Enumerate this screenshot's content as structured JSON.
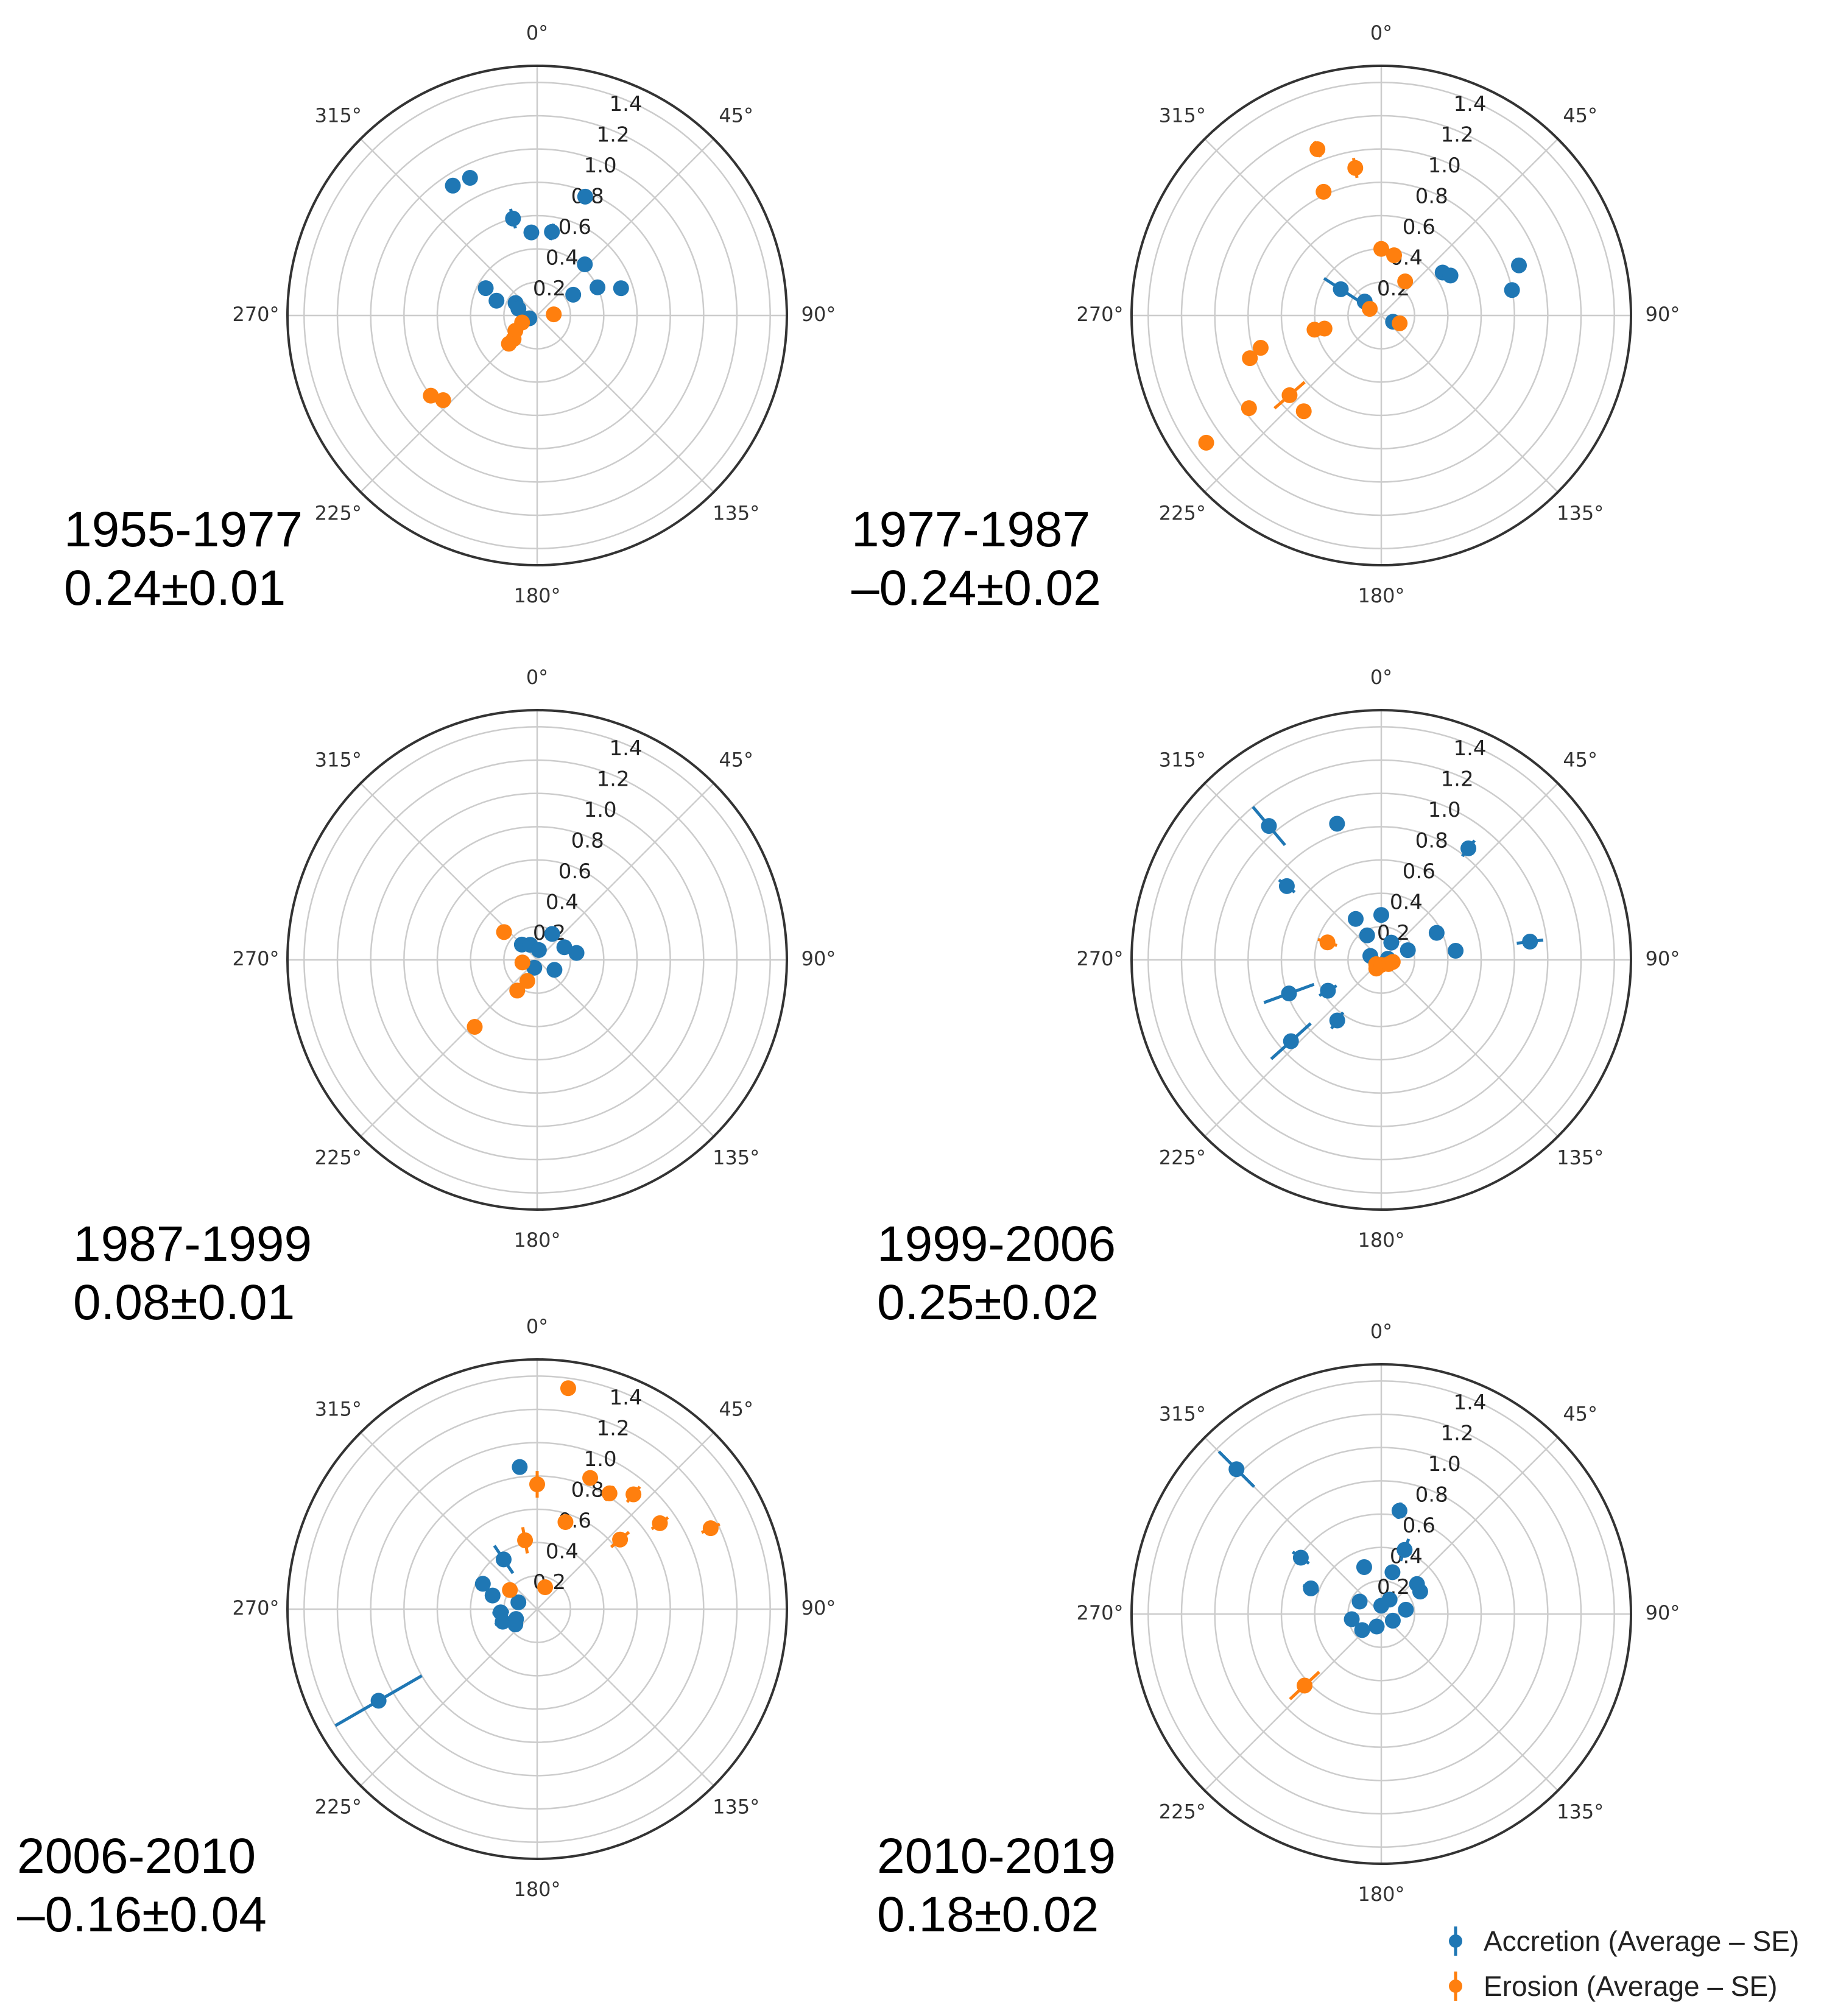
{
  "chart_data": [
    {
      "type": "scatter",
      "projection": "polar",
      "period": "1955-1977",
      "value": "0.24±0.01",
      "angle_ticks": [
        "0°",
        "45°",
        "90°",
        "135°",
        "180°",
        "225°",
        "270°",
        "315°"
      ],
      "radial_ticks": [
        "0.2",
        "0.4",
        "0.6",
        "0.8",
        "1.0",
        "1.2",
        "1.4"
      ],
      "rlim": [
        0,
        1.5
      ],
      "series": [
        {
          "name": "Accretion (Average – SE)",
          "points": [
            {
              "theta": 327,
              "r": 0.93,
              "err": 0.04
            },
            {
              "theta": 334,
              "r": 0.92,
              "err": 0.02
            },
            {
              "theta": 346,
              "r": 0.6,
              "err": 0.06
            },
            {
              "theta": 356,
              "r": 0.5,
              "err": 0.03
            },
            {
              "theta": 10,
              "r": 0.51,
              "err": 0.05
            },
            {
              "theta": 22,
              "r": 0.77,
              "err": 0.02
            },
            {
              "theta": 43,
              "r": 0.42,
              "err": 0.02
            },
            {
              "theta": 65,
              "r": 0.4,
              "err": 0.02
            },
            {
              "theta": 72,
              "r": 0.53,
              "err": 0.02
            },
            {
              "theta": 60,
              "r": 0.25,
              "err": 0.02
            },
            {
              "theta": 298,
              "r": 0.35,
              "err": 0.02
            },
            {
              "theta": 290,
              "r": 0.26,
              "err": 0.02
            },
            {
              "theta": 300,
              "r": 0.15,
              "err": 0.02
            },
            {
              "theta": 290,
              "r": 0.12,
              "err": 0.02
            },
            {
              "theta": 250,
              "r": 0.05,
              "err": 0.02
            }
          ]
        },
        {
          "name": "Erosion (Average – SE)",
          "points": [
            {
              "theta": 245,
              "r": 0.1,
              "err": 0.02
            },
            {
              "theta": 235,
              "r": 0.16,
              "err": 0.02
            },
            {
              "theta": 225,
              "r": 0.2,
              "err": 0.02
            },
            {
              "theta": 225,
              "r": 0.24,
              "err": 0.02
            },
            {
              "theta": 86,
              "r": 0.1,
              "err": 0.02
            },
            {
              "theta": 233,
              "r": 0.8,
              "err": 0.02
            },
            {
              "theta": 228,
              "r": 0.76,
              "err": 0.02
            }
          ]
        }
      ]
    },
    {
      "type": "scatter",
      "projection": "polar",
      "period": "1977-1987",
      "value": "–0.24±0.02",
      "angle_ticks": [
        "0°",
        "45°",
        "90°",
        "135°",
        "180°",
        "225°",
        "270°",
        "315°"
      ],
      "radial_ticks": [
        "0.2",
        "0.4",
        "0.6",
        "0.8",
        "1.0",
        "1.2",
        "1.4"
      ],
      "rlim": [
        0,
        1.5
      ],
      "series": [
        {
          "name": "Accretion (Average – SE)",
          "points": [
            {
              "theta": 55,
              "r": 0.45,
              "err": 0.02
            },
            {
              "theta": 60,
              "r": 0.48,
              "err": 0.02
            },
            {
              "theta": 70,
              "r": 0.88,
              "err": 0.02
            },
            {
              "theta": 79,
              "r": 0.8,
              "err": 0.02
            },
            {
              "theta": 303,
              "r": 0.29,
              "err": 0.12
            },
            {
              "theta": 310,
              "r": 0.13,
              "err": 0.02
            },
            {
              "theta": 118,
              "r": 0.08,
              "err": 0.02
            }
          ]
        },
        {
          "name": "Erosion (Average – SE)",
          "points": [
            {
              "theta": 339,
              "r": 1.07,
              "err": 0.05
            },
            {
              "theta": 350,
              "r": 0.9,
              "err": 0.06
            },
            {
              "theta": 335,
              "r": 0.82,
              "err": 0.02
            },
            {
              "theta": 0,
              "r": 0.4,
              "err": 0.02
            },
            {
              "theta": 35,
              "r": 0.25,
              "err": 0.02
            },
            {
              "theta": 12,
              "r": 0.37,
              "err": 0.02
            },
            {
              "theta": 255,
              "r": 0.75,
              "err": 0.04
            },
            {
              "theta": 252,
              "r": 0.83,
              "err": 0.02
            },
            {
              "theta": 235,
              "r": 0.97,
              "err": 0.02
            },
            {
              "theta": 234,
              "r": 1.3,
              "err": 0.02
            },
            {
              "theta": 229,
              "r": 0.73,
              "err": 0.12
            },
            {
              "theta": 219,
              "r": 0.74,
              "err": 0.02
            },
            {
              "theta": 257,
              "r": 0.35,
              "err": 0.02
            },
            {
              "theta": 258,
              "r": 0.41,
              "err": 0.02
            },
            {
              "theta": 300,
              "r": 0.08,
              "err": 0.02
            },
            {
              "theta": 113,
              "r": 0.12,
              "err": 0.02
            }
          ]
        }
      ]
    },
    {
      "type": "scatter",
      "projection": "polar",
      "period": "1987-1999",
      "value": "0.08±0.01",
      "angle_ticks": [
        "0°",
        "45°",
        "90°",
        "135°",
        "180°",
        "225°",
        "270°",
        "315°"
      ],
      "radial_ticks": [
        "0.2",
        "0.4",
        "0.6",
        "0.8",
        "1.0",
        "1.2",
        "1.4"
      ],
      "rlim": [
        0,
        1.5
      ],
      "series": [
        {
          "name": "Accretion (Average – SE)",
          "points": [
            {
              "theta": 315,
              "r": 0.13,
              "err": 0.02
            },
            {
              "theta": 335,
              "r": 0.1,
              "err": 0.02
            },
            {
              "theta": 30,
              "r": 0.18,
              "err": 0.02
            },
            {
              "theta": 65,
              "r": 0.18,
              "err": 0.02
            },
            {
              "theta": 80,
              "r": 0.24,
              "err": 0.02
            },
            {
              "theta": 120,
              "r": 0.12,
              "err": 0.02
            },
            {
              "theta": 10,
              "r": 0.06,
              "err": 0.02
            },
            {
              "theta": 200,
              "r": 0.05,
              "err": 0.02
            }
          ]
        },
        {
          "name": "Erosion (Average – SE)",
          "points": [
            {
              "theta": 310,
              "r": 0.26,
              "err": 0.02
            },
            {
              "theta": 213,
              "r": 0.22,
              "err": 0.02
            },
            {
              "theta": 205,
              "r": 0.14,
              "err": 0.02
            },
            {
              "theta": 223,
              "r": 0.55,
              "err": 0.02
            },
            {
              "theta": 260,
              "r": 0.09,
              "err": 0.02
            }
          ]
        }
      ]
    },
    {
      "type": "scatter",
      "projection": "polar",
      "period": "1999-2006",
      "value": "0.25±0.02",
      "angle_ticks": [
        "0°",
        "45°",
        "90°",
        "135°",
        "180°",
        "225°",
        "270°",
        "315°"
      ],
      "radial_ticks": [
        "0.2",
        "0.4",
        "0.6",
        "0.8",
        "1.0",
        "1.2",
        "1.4"
      ],
      "rlim": [
        0,
        1.5
      ],
      "series": [
        {
          "name": "Accretion (Average – SE)",
          "points": [
            {
              "theta": 320,
              "r": 1.05,
              "err": 0.15
            },
            {
              "theta": 342,
              "r": 0.86,
              "err": 0.02
            },
            {
              "theta": 308,
              "r": 0.72,
              "err": 0.06
            },
            {
              "theta": 38,
              "r": 0.85,
              "err": 0.06
            },
            {
              "theta": 64,
              "r": 0.37,
              "err": 0.04
            },
            {
              "theta": 83,
              "r": 0.45,
              "err": 0.02
            },
            {
              "theta": 83,
              "r": 0.9,
              "err": 0.08
            },
            {
              "theta": 328,
              "r": 0.29,
              "err": 0.02
            },
            {
              "theta": 0,
              "r": 0.27,
              "err": 0.02
            },
            {
              "theta": 330,
              "r": 0.17,
              "err": 0.02
            },
            {
              "theta": 30,
              "r": 0.12,
              "err": 0.02
            },
            {
              "theta": 70,
              "r": 0.17,
              "err": 0.02
            },
            {
              "theta": 80,
              "r": 0.04,
              "err": 0.02
            },
            {
              "theta": 250,
              "r": 0.59,
              "err": 0.16
            },
            {
              "theta": 240,
              "r": 0.37,
              "err": 0.06
            },
            {
              "theta": 228,
              "r": 0.73,
              "err": 0.16
            },
            {
              "theta": 216,
              "r": 0.45,
              "err": 0.06
            },
            {
              "theta": 290,
              "r": 0.07,
              "err": 0.02
            }
          ]
        },
        {
          "name": "Erosion (Average – SE)",
          "points": [
            {
              "theta": 288,
              "r": 0.34,
              "err": 0.06
            },
            {
              "theta": 230,
              "r": 0.04,
              "err": 0.02
            },
            {
              "theta": 210,
              "r": 0.06,
              "err": 0.02
            },
            {
              "theta": 180,
              "r": 0.03,
              "err": 0.02
            },
            {
              "theta": 120,
              "r": 0.05,
              "err": 0.02
            },
            {
              "theta": 100,
              "r": 0.07,
              "err": 0.02
            }
          ]
        }
      ]
    },
    {
      "type": "scatter",
      "projection": "polar",
      "period": "2006-2010",
      "value": "–0.16±0.04",
      "angle_ticks": [
        "0°",
        "45°",
        "90°",
        "135°",
        "180°",
        "225°",
        "270°",
        "315°"
      ],
      "radial_ticks": [
        "0.2",
        "0.4",
        "0.6",
        "0.8",
        "1.0",
        "1.2",
        "1.4"
      ],
      "rlim": [
        0,
        1.5
      ],
      "series": [
        {
          "name": "Accretion (Average – SE)",
          "points": [
            {
              "theta": 353,
              "r": 0.86,
              "err": 0.02
            },
            {
              "theta": 326,
              "r": 0.36,
              "err": 0.1
            },
            {
              "theta": 295,
              "r": 0.36,
              "err": 0.02
            },
            {
              "theta": 287,
              "r": 0.28,
              "err": 0.02
            },
            {
              "theta": 265,
              "r": 0.22,
              "err": 0.05
            },
            {
              "theta": 250,
              "r": 0.22,
              "err": 0.05
            },
            {
              "theta": 235,
              "r": 0.16,
              "err": 0.02
            },
            {
              "theta": 245,
              "r": 0.14,
              "err": 0.02
            },
            {
              "theta": 240,
              "r": 1.1,
              "err": 0.3
            },
            {
              "theta": 290,
              "r": 0.12,
              "err": 0.02
            }
          ]
        },
        {
          "name": "Erosion (Average – SE)",
          "points": [
            {
              "theta": 8,
              "r": 1.34,
              "err": 0.02
            },
            {
              "theta": 0,
              "r": 0.75,
              "err": 0.08
            },
            {
              "theta": 350,
              "r": 0.42,
              "err": 0.08
            },
            {
              "theta": 18,
              "r": 0.55,
              "err": 0.04
            },
            {
              "theta": 22,
              "r": 0.85,
              "err": 0.04
            },
            {
              "theta": 32,
              "r": 0.82,
              "err": 0.05
            },
            {
              "theta": 40,
              "r": 0.9,
              "err": 0.06
            },
            {
              "theta": 50,
              "r": 0.65,
              "err": 0.07
            },
            {
              "theta": 55,
              "r": 0.9,
              "err": 0.06
            },
            {
              "theta": 65,
              "r": 1.15,
              "err": 0.06
            },
            {
              "theta": 305,
              "r": 0.2,
              "err": 0.02
            },
            {
              "theta": 20,
              "r": 0.14,
              "err": 0.02
            }
          ]
        }
      ]
    },
    {
      "type": "scatter",
      "projection": "polar",
      "period": "2010-2019",
      "value": "0.18±0.02",
      "angle_ticks": [
        "0°",
        "45°",
        "90°",
        "135°",
        "180°",
        "225°",
        "270°",
        "315°"
      ],
      "radial_ticks": [
        "0.2",
        "0.4",
        "0.6",
        "0.8",
        "1.0",
        "1.2",
        "1.4"
      ],
      "rlim": [
        0,
        1.5
      ],
      "series": [
        {
          "name": "Accretion (Average – SE)",
          "points": [
            {
              "theta": 315,
              "r": 1.23,
              "err": 0.15
            },
            {
              "theta": 305,
              "r": 0.59,
              "err": 0.06
            },
            {
              "theta": 290,
              "r": 0.45,
              "err": 0.05
            },
            {
              "theta": 10,
              "r": 0.63,
              "err": 0.05
            },
            {
              "theta": 20,
              "r": 0.41,
              "err": 0.07
            },
            {
              "theta": 340,
              "r": 0.3,
              "err": 0.03
            },
            {
              "theta": 15,
              "r": 0.26,
              "err": 0.02
            },
            {
              "theta": 50,
              "r": 0.28,
              "err": 0.02
            },
            {
              "theta": 60,
              "r": 0.27,
              "err": 0.03
            },
            {
              "theta": 300,
              "r": 0.15,
              "err": 0.02
            },
            {
              "theta": 260,
              "r": 0.18,
              "err": 0.02
            },
            {
              "theta": 230,
              "r": 0.15,
              "err": 0.02
            },
            {
              "theta": 200,
              "r": 0.08,
              "err": 0.02
            },
            {
              "theta": 120,
              "r": 0.08,
              "err": 0.02
            },
            {
              "theta": 80,
              "r": 0.15,
              "err": 0.02
            },
            {
              "theta": 30,
              "r": 0.1,
              "err": 0.02
            },
            {
              "theta": 0,
              "r": 0.05,
              "err": 0.02
            }
          ]
        },
        {
          "name": "Erosion (Average – SE)",
          "points": [
            {
              "theta": 227,
              "r": 0.63,
              "err": 0.12
            }
          ]
        }
      ]
    }
  ],
  "legend": {
    "placement": "bottom-right",
    "items": [
      {
        "label": "Accretion (Average – SE)",
        "color": "#1f77b4"
      },
      {
        "label": "Erosion (Average – SE)",
        "color": "#ff7f0e"
      }
    ]
  }
}
